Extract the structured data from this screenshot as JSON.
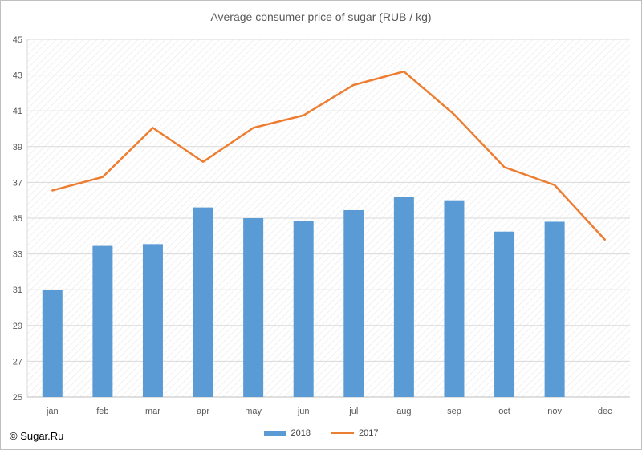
{
  "chart_data": {
    "type": "bar",
    "title": "Average consumer price of sugar (RUB / kg)",
    "categories": [
      "jan",
      "feb",
      "mar",
      "apr",
      "may",
      "jun",
      "jul",
      "aug",
      "sep",
      "oct",
      "nov",
      "dec"
    ],
    "series": [
      {
        "name": "2018",
        "type": "bar",
        "color": "#5b9bd5",
        "values": [
          31.0,
          33.45,
          33.55,
          35.6,
          35.0,
          34.85,
          35.45,
          36.2,
          36.0,
          34.25,
          34.8,
          null
        ]
      },
      {
        "name": "2017",
        "type": "line",
        "color": "#ed7d31",
        "values": [
          36.55,
          37.3,
          40.05,
          38.15,
          40.05,
          40.75,
          42.45,
          43.2,
          40.8,
          37.85,
          36.85,
          33.8
        ]
      }
    ],
    "ylim": [
      25,
      45
    ],
    "yticks": [
      "25",
      "27",
      "29",
      "31",
      "33",
      "35",
      "37",
      "39",
      "41",
      "43",
      "45"
    ],
    "xlabel": "",
    "ylabel": "",
    "grid": true,
    "legend": "bottom"
  },
  "copyright": "© Sugar.Ru"
}
